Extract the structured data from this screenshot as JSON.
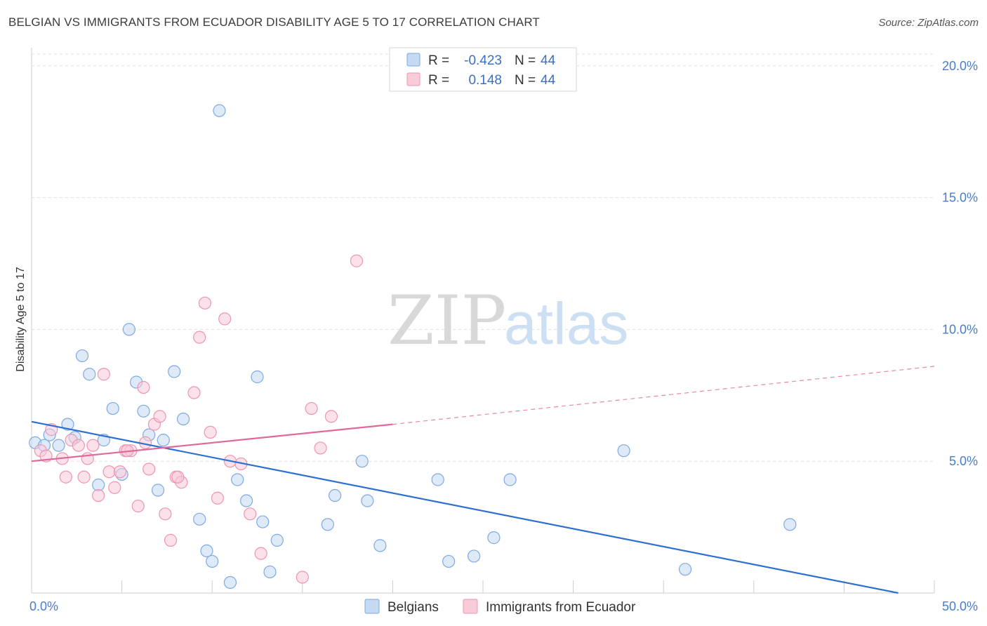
{
  "title": "BELGIAN VS IMMIGRANTS FROM ECUADOR DISABILITY AGE 5 TO 17 CORRELATION CHART",
  "source": "Source: ZipAtlas.com",
  "watermark": {
    "zip": "ZIP",
    "atlas": "atlas"
  },
  "colors": {
    "belgians_fill": "#c5d9f3",
    "belgians_stroke": "#7fa9e2",
    "belgians_line": "#2f6fcf",
    "ecuador_fill": "#f8cbd9",
    "ecuador_stroke": "#ee94b0",
    "ecuador_line": "#e0689a",
    "grid": "#e0e0e0",
    "tick_text": "#4a7cc9"
  },
  "stats": [
    {
      "r_label": "R = ",
      "r_value": "-0.423",
      "n_label": "N = ",
      "n_value": "44"
    },
    {
      "r_label": "R = ",
      "r_value": "0.148",
      "n_label": "N = ",
      "n_value": "44"
    }
  ],
  "legend": [
    "Belgians",
    "Immigrants from Ecuador"
  ],
  "chart_data": {
    "type": "scatter",
    "title": "BELGIAN VS IMMIGRANTS FROM ECUADOR DISABILITY AGE 5 TO 17 CORRELATION CHART",
    "xlabel": "",
    "ylabel": "Disability Age 5 to 17",
    "xlim": [
      0,
      50
    ],
    "ylim": [
      0,
      20.5
    ],
    "x_tick_labels": [
      "0.0%",
      "50.0%"
    ],
    "y_ticks": [
      5,
      10,
      15,
      20
    ],
    "y_tick_labels": [
      "5.0%",
      "10.0%",
      "15.0%",
      "20.0%"
    ],
    "grid": true,
    "legend_position": "bottom",
    "series": [
      {
        "name": "Belgians",
        "points": [
          [
            0.2,
            5.7
          ],
          [
            0.7,
            5.6
          ],
          [
            1.0,
            6.0
          ],
          [
            1.5,
            5.6
          ],
          [
            2.0,
            6.4
          ],
          [
            2.4,
            5.9
          ],
          [
            2.8,
            9.0
          ],
          [
            3.2,
            8.3
          ],
          [
            3.7,
            4.1
          ],
          [
            4.0,
            5.8
          ],
          [
            4.5,
            7.0
          ],
          [
            5.0,
            4.5
          ],
          [
            5.4,
            10.0
          ],
          [
            5.8,
            8.0
          ],
          [
            6.2,
            6.9
          ],
          [
            6.5,
            6.0
          ],
          [
            7.0,
            3.9
          ],
          [
            7.3,
            5.8
          ],
          [
            7.9,
            8.4
          ],
          [
            8.4,
            6.6
          ],
          [
            9.3,
            2.8
          ],
          [
            9.7,
            1.6
          ],
          [
            10.0,
            1.2
          ],
          [
            10.4,
            18.3
          ],
          [
            11.0,
            0.4
          ],
          [
            11.9,
            3.5
          ],
          [
            12.5,
            8.2
          ],
          [
            12.8,
            2.7
          ],
          [
            13.2,
            0.8
          ],
          [
            13.6,
            2.0
          ],
          [
            16.4,
            2.6
          ],
          [
            16.8,
            3.7
          ],
          [
            18.3,
            5.0
          ],
          [
            18.6,
            3.5
          ],
          [
            19.3,
            1.8
          ],
          [
            22.5,
            4.3
          ],
          [
            23.1,
            1.2
          ],
          [
            24.5,
            1.4
          ],
          [
            25.6,
            2.1
          ],
          [
            26.5,
            4.3
          ],
          [
            32.8,
            5.4
          ],
          [
            36.2,
            0.9
          ],
          [
            42.0,
            2.6
          ],
          [
            11.4,
            4.3
          ]
        ]
      },
      {
        "name": "Immigrants from Ecuador",
        "points": [
          [
            0.5,
            5.4
          ],
          [
            0.8,
            5.2
          ],
          [
            1.1,
            6.2
          ],
          [
            1.7,
            5.1
          ],
          [
            1.9,
            4.4
          ],
          [
            2.2,
            5.8
          ],
          [
            2.6,
            5.6
          ],
          [
            2.9,
            4.4
          ],
          [
            3.1,
            5.1
          ],
          [
            3.4,
            5.6
          ],
          [
            3.7,
            3.7
          ],
          [
            4.0,
            8.3
          ],
          [
            4.3,
            4.6
          ],
          [
            4.6,
            4.0
          ],
          [
            4.9,
            4.6
          ],
          [
            5.2,
            5.4
          ],
          [
            5.5,
            5.4
          ],
          [
            5.9,
            3.3
          ],
          [
            6.2,
            7.8
          ],
          [
            6.5,
            4.7
          ],
          [
            6.8,
            6.4
          ],
          [
            7.1,
            6.7
          ],
          [
            7.4,
            3.0
          ],
          [
            7.7,
            2.0
          ],
          [
            8.0,
            4.4
          ],
          [
            8.3,
            4.2
          ],
          [
            9.0,
            7.6
          ],
          [
            9.3,
            9.7
          ],
          [
            9.6,
            11.0
          ],
          [
            9.9,
            6.1
          ],
          [
            10.3,
            3.6
          ],
          [
            10.7,
            10.4
          ],
          [
            11.0,
            5.0
          ],
          [
            11.6,
            4.9
          ],
          [
            12.1,
            3.0
          ],
          [
            12.7,
            1.5
          ],
          [
            15.0,
            0.6
          ],
          [
            15.5,
            7.0
          ],
          [
            16.0,
            5.5
          ],
          [
            16.6,
            6.7
          ],
          [
            18.0,
            12.6
          ],
          [
            8.1,
            4.4
          ],
          [
            5.3,
            5.4
          ],
          [
            6.3,
            5.7
          ]
        ]
      }
    ],
    "trendlines": [
      {
        "series": "Belgians",
        "from": [
          0,
          6.5
        ],
        "to": [
          48.0,
          0.0
        ],
        "style": "solid"
      },
      {
        "series": "Immigrants from Ecuador",
        "from": [
          0,
          5.0
        ],
        "to": [
          20.0,
          6.4
        ],
        "style": "solid"
      },
      {
        "series": "Immigrants from Ecuador",
        "from": [
          20.0,
          6.4
        ],
        "to": [
          50.0,
          8.6
        ],
        "style": "dashed"
      }
    ]
  }
}
